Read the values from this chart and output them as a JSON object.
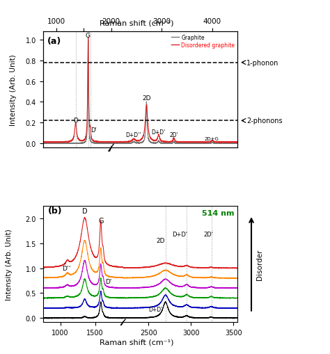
{
  "title_top": "Raman shift (cm⁻¹)",
  "xlabel": "Raman shift (cm⁻¹)",
  "ylabel_a": "Intensity (Arb. Unit)",
  "ylabel_b": "Intensity (Arb. Unit)",
  "colors": {
    "graphite": "#777777",
    "disordered": "#dd2222",
    "red": "#dd2222",
    "orange": "#ff8800",
    "purple": "#bb00cc",
    "green": "#009900",
    "blue": "#0000bb",
    "black": "#000000"
  },
  "background": "#ffffff"
}
